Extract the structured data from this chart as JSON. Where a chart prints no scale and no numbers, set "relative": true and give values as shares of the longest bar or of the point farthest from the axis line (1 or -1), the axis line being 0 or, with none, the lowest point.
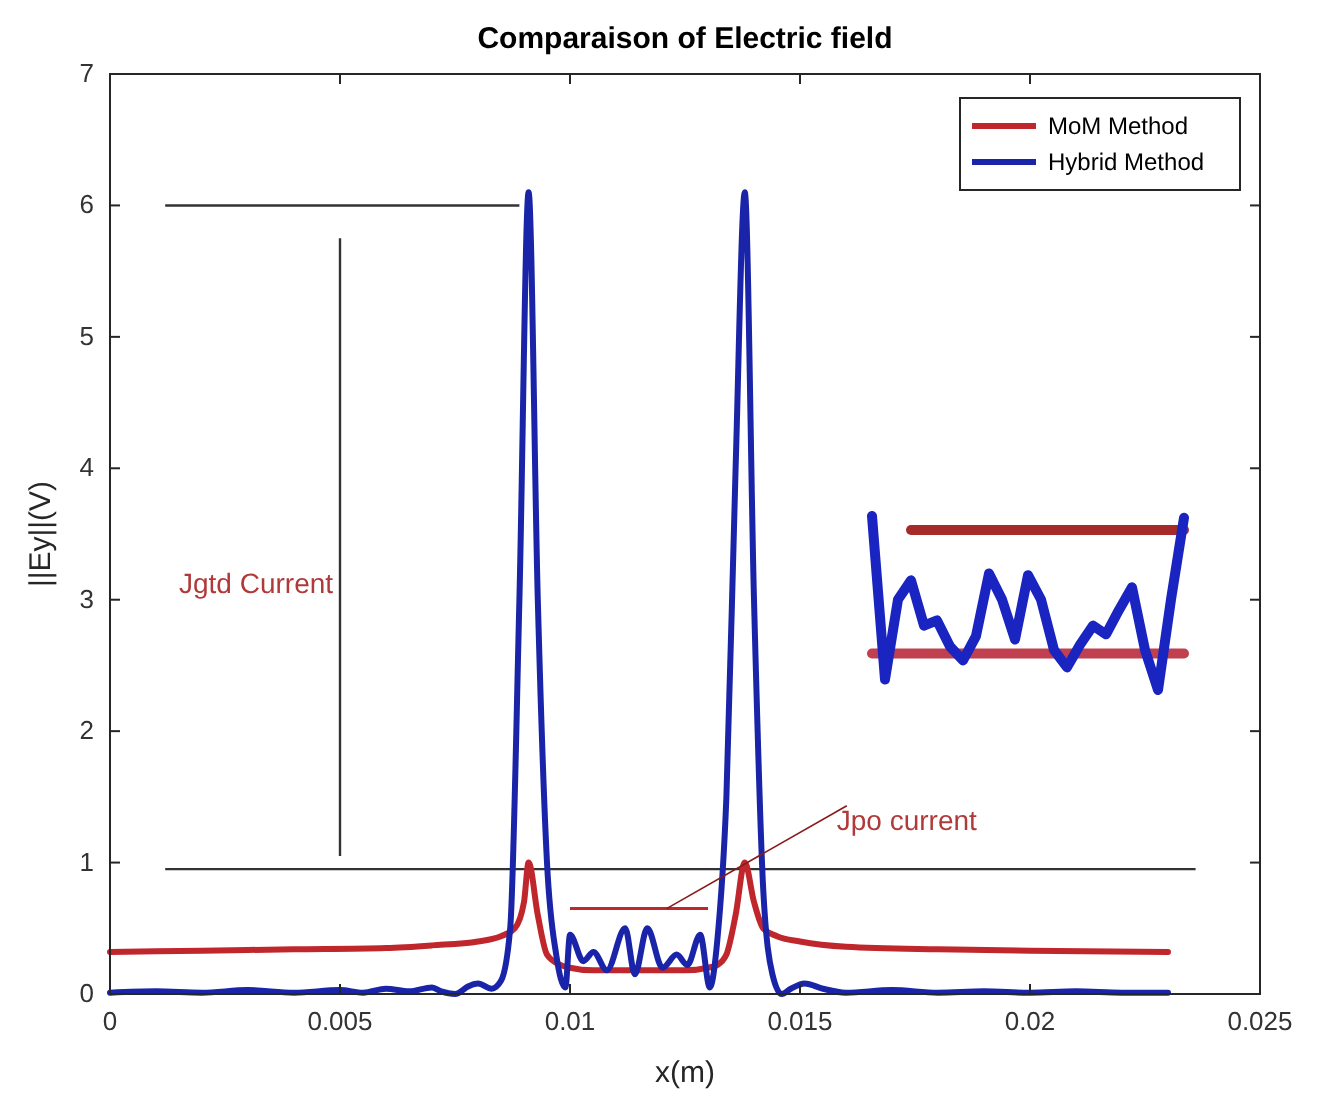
{
  "chart_data": [
    {
      "type": "line",
      "title": "Comparaison of Electric field",
      "xlabel": "x(m)",
      "ylabel": "||Ey||(V)",
      "xlim": [
        0,
        0.025
      ],
      "xticks": [
        0,
        0.005,
        0.01,
        0.015,
        0.02,
        0.025
      ],
      "ylim": [
        0,
        7
      ],
      "yticks": [
        0,
        1,
        2,
        3,
        4,
        5,
        6,
        7
      ],
      "legend": "top right",
      "grid": false,
      "line_style": "solid",
      "marker": "none",
      "annotations": [
        "Jgtd  Current",
        {
          "text": "Jpo current",
          "x": 0.0121,
          "y": 0.65
        }
      ],
      "ref_lines": [
        {
          "axis": "y",
          "value": 6,
          "color": "#333333"
        },
        {
          "axis": "x",
          "value": 0.005,
          "color": "#333333"
        },
        {
          "axis": "y",
          "value": 0.95,
          "color": "#333333"
        },
        {
          "axis": "y",
          "value": 0.65,
          "color": "#c0272d"
        }
      ],
      "series": [
        {
          "name": "MoM Method",
          "color": "#c0272d",
          "x": [
            0,
            0.002,
            0.004,
            0.006,
            0.007,
            0.008,
            0.0085,
            0.0088,
            0.009,
            0.0091,
            0.0093,
            0.0095,
            0.0098,
            0.01,
            0.0105,
            0.011,
            0.0115,
            0.012,
            0.0125,
            0.013,
            0.0132,
            0.0134,
            0.0136,
            0.0138,
            0.014,
            0.0142,
            0.0145,
            0.015,
            0.016,
            0.018,
            0.02,
            0.023
          ],
          "values": [
            0.32,
            0.33,
            0.34,
            0.35,
            0.37,
            0.4,
            0.44,
            0.5,
            0.7,
            1.0,
            0.6,
            0.3,
            0.22,
            0.2,
            0.18,
            0.18,
            0.18,
            0.18,
            0.18,
            0.2,
            0.22,
            0.3,
            0.6,
            1.0,
            0.7,
            0.5,
            0.44,
            0.4,
            0.36,
            0.34,
            0.33,
            0.32
          ]
        },
        {
          "name": "Hybrid Method",
          "color": "#1a24a8",
          "x": [
            0,
            0.001,
            0.002,
            0.003,
            0.004,
            0.005,
            0.0055,
            0.006,
            0.0065,
            0.007,
            0.0072,
            0.0075,
            0.0078,
            0.008,
            0.0083,
            0.0085,
            0.0087,
            0.0089,
            0.0091,
            0.0093,
            0.0095,
            0.0097,
            0.0099,
            0.01,
            0.01029,
            0.01051,
            0.0108,
            0.0112,
            0.01141,
            0.01168,
            0.01201,
            0.01232,
            0.01255,
            0.01283,
            0.01304,
            0.0132,
            0.0134,
            0.0136,
            0.0138,
            0.014,
            0.0142,
            0.0144,
            0.0146,
            0.0148,
            0.0151,
            0.0155,
            0.016,
            0.017,
            0.018,
            0.019,
            0.02,
            0.021,
            0.022,
            0.023
          ],
          "values": [
            0.01,
            0.02,
            0.01,
            0.03,
            0.01,
            0.03,
            0.01,
            0.04,
            0.02,
            0.05,
            0.02,
            0.0,
            0.06,
            0.08,
            0.04,
            0.1,
            0.5,
            3.0,
            6.1,
            3.0,
            1.0,
            0.3,
            0.05,
            0.45,
            0.25,
            0.32,
            0.18,
            0.5,
            0.15,
            0.5,
            0.2,
            0.3,
            0.22,
            0.45,
            0.05,
            0.4,
            1.5,
            4.0,
            6.1,
            3.0,
            0.8,
            0.15,
            0.0,
            0.04,
            0.08,
            0.04,
            0.01,
            0.03,
            0.01,
            0.02,
            0.01,
            0.02,
            0.01,
            0.01
          ]
        }
      ]
    },
    {
      "type": "line",
      "relative": true,
      "line_style": "solid",
      "marker": "none",
      "categories": [
        null,
        null,
        null,
        null,
        null,
        null,
        null,
        null,
        null,
        null,
        null,
        null,
        null,
        null,
        null,
        null,
        null,
        null,
        null,
        null,
        null,
        null,
        null,
        null,
        null
      ],
      "series": [
        {
          "color": "#a52a2a",
          "values": [
            null,
            null,
            null,
            0.92,
            0.92,
            0.92,
            0.92,
            0.92,
            0.92,
            0.92,
            0.92,
            0.92,
            0.92,
            0.92,
            0.92,
            0.92,
            0.92,
            0.92,
            0.92,
            0.92,
            0.92,
            0.92,
            0.92,
            0.92,
            0.92
          ]
        },
        {
          "color": "#c04050",
          "values": [
            0.21,
            0.21,
            0.21,
            0.21,
            0.21,
            0.21,
            0.21,
            0.21,
            0.21,
            0.21,
            0.21,
            0.21,
            0.21,
            0.21,
            0.21,
            0.21,
            0.21,
            0.21,
            0.21,
            0.21,
            0.21,
            0.21,
            0.21,
            0.21,
            0.21
          ]
        },
        {
          "color": "#1a24c0",
          "values": [
            1.0,
            0.06,
            0.52,
            0.63,
            0.37,
            0.4,
            0.25,
            0.17,
            0.31,
            0.67,
            0.52,
            0.29,
            0.66,
            0.52,
            0.23,
            0.13,
            0.26,
            0.37,
            0.32,
            0.46,
            0.59,
            0.23,
            0,
            0.52,
            0.99
          ]
        }
      ]
    }
  ]
}
